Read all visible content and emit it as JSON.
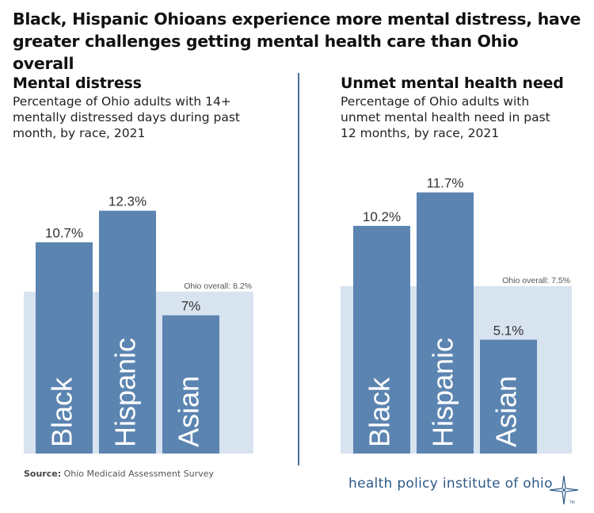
{
  "headline": "Black, Hispanic Ohioans experience more mental distress, have greater challenges getting mental health care than Ohio overall",
  "colors": {
    "bar": "#5b84b1",
    "overall_band": "#d8e3f0",
    "divider": "#4a6f94",
    "logo": "#2d5a88"
  },
  "chart_data": [
    {
      "type": "bar",
      "title": "Mental distress",
      "subtitle": "Percentage of Ohio adults with 14+ mentally distressed days during past month, by race, 2021",
      "categories": [
        "Black",
        "Hispanic",
        "Asian"
      ],
      "values": [
        10.7,
        12.3,
        7
      ],
      "data_labels": [
        "10.7%",
        "12.3%",
        "7%"
      ],
      "reference": {
        "label": "Ohio overall: 8.2%",
        "value": 8.2
      },
      "ylim": [
        0,
        14
      ]
    },
    {
      "type": "bar",
      "title": "Unmet mental health need",
      "subtitle": "Percentage of Ohio adults with unmet mental health need in past 12 months, by race, 2021",
      "categories": [
        "Black",
        "Hispanic",
        "Asian"
      ],
      "values": [
        10.2,
        11.7,
        5.1
      ],
      "data_labels": [
        "10.2%",
        "11.7%",
        "5.1%"
      ],
      "reference": {
        "label": "Ohio overall: 7.5%",
        "value": 7.5
      },
      "ylim": [
        0,
        13.2
      ]
    }
  ],
  "source": {
    "label": "Source:",
    "text": "Ohio Medicaid Assessment Survey"
  },
  "logo": {
    "text": "health policy institute of ohio",
    "tm": "TM"
  }
}
